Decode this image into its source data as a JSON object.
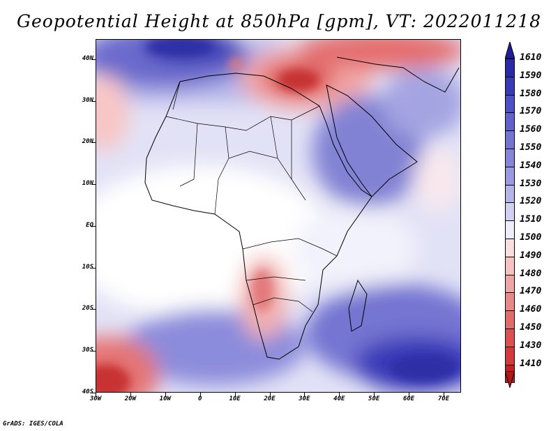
{
  "title": "Geopotential Height at 850hPa [gpm], VT: 2022011218",
  "footer": "GrADS: IGES/COLA",
  "map": {
    "region": "Africa",
    "lon_range": [
      "30W",
      "75E"
    ],
    "lat_range": [
      "40S",
      "45N"
    ]
  },
  "axes": {
    "y_labels": [
      "40N",
      "30N",
      "20N",
      "10N",
      "EQ",
      "10S",
      "20S",
      "30S",
      "40S"
    ],
    "x_labels": [
      "30W",
      "20W",
      "10W",
      "0",
      "10E",
      "20E",
      "30E",
      "40E",
      "50E",
      "60E",
      "70E"
    ]
  },
  "colorbar": {
    "labels": [
      "1610",
      "1590",
      "1580",
      "1570",
      "1560",
      "1550",
      "1540",
      "1530",
      "1520",
      "1510",
      "1500",
      "1490",
      "1480",
      "1470",
      "1460",
      "1450",
      "1430",
      "1410"
    ],
    "colors": [
      "#2a2aa6",
      "#3a3ab8",
      "#4f4fc6",
      "#6262cc",
      "#7474d2",
      "#8686d8",
      "#9a9ae0",
      "#b4b4e8",
      "#d0d0f2",
      "#ececfa",
      "#fbdede",
      "#f6c2c2",
      "#f0a6a6",
      "#e98888",
      "#e26a6a",
      "#dc5050",
      "#d43a3a",
      "#c42222"
    ],
    "top_arrow_color": "#1e1e96",
    "bottom_arrow_color": "#b21818"
  }
}
